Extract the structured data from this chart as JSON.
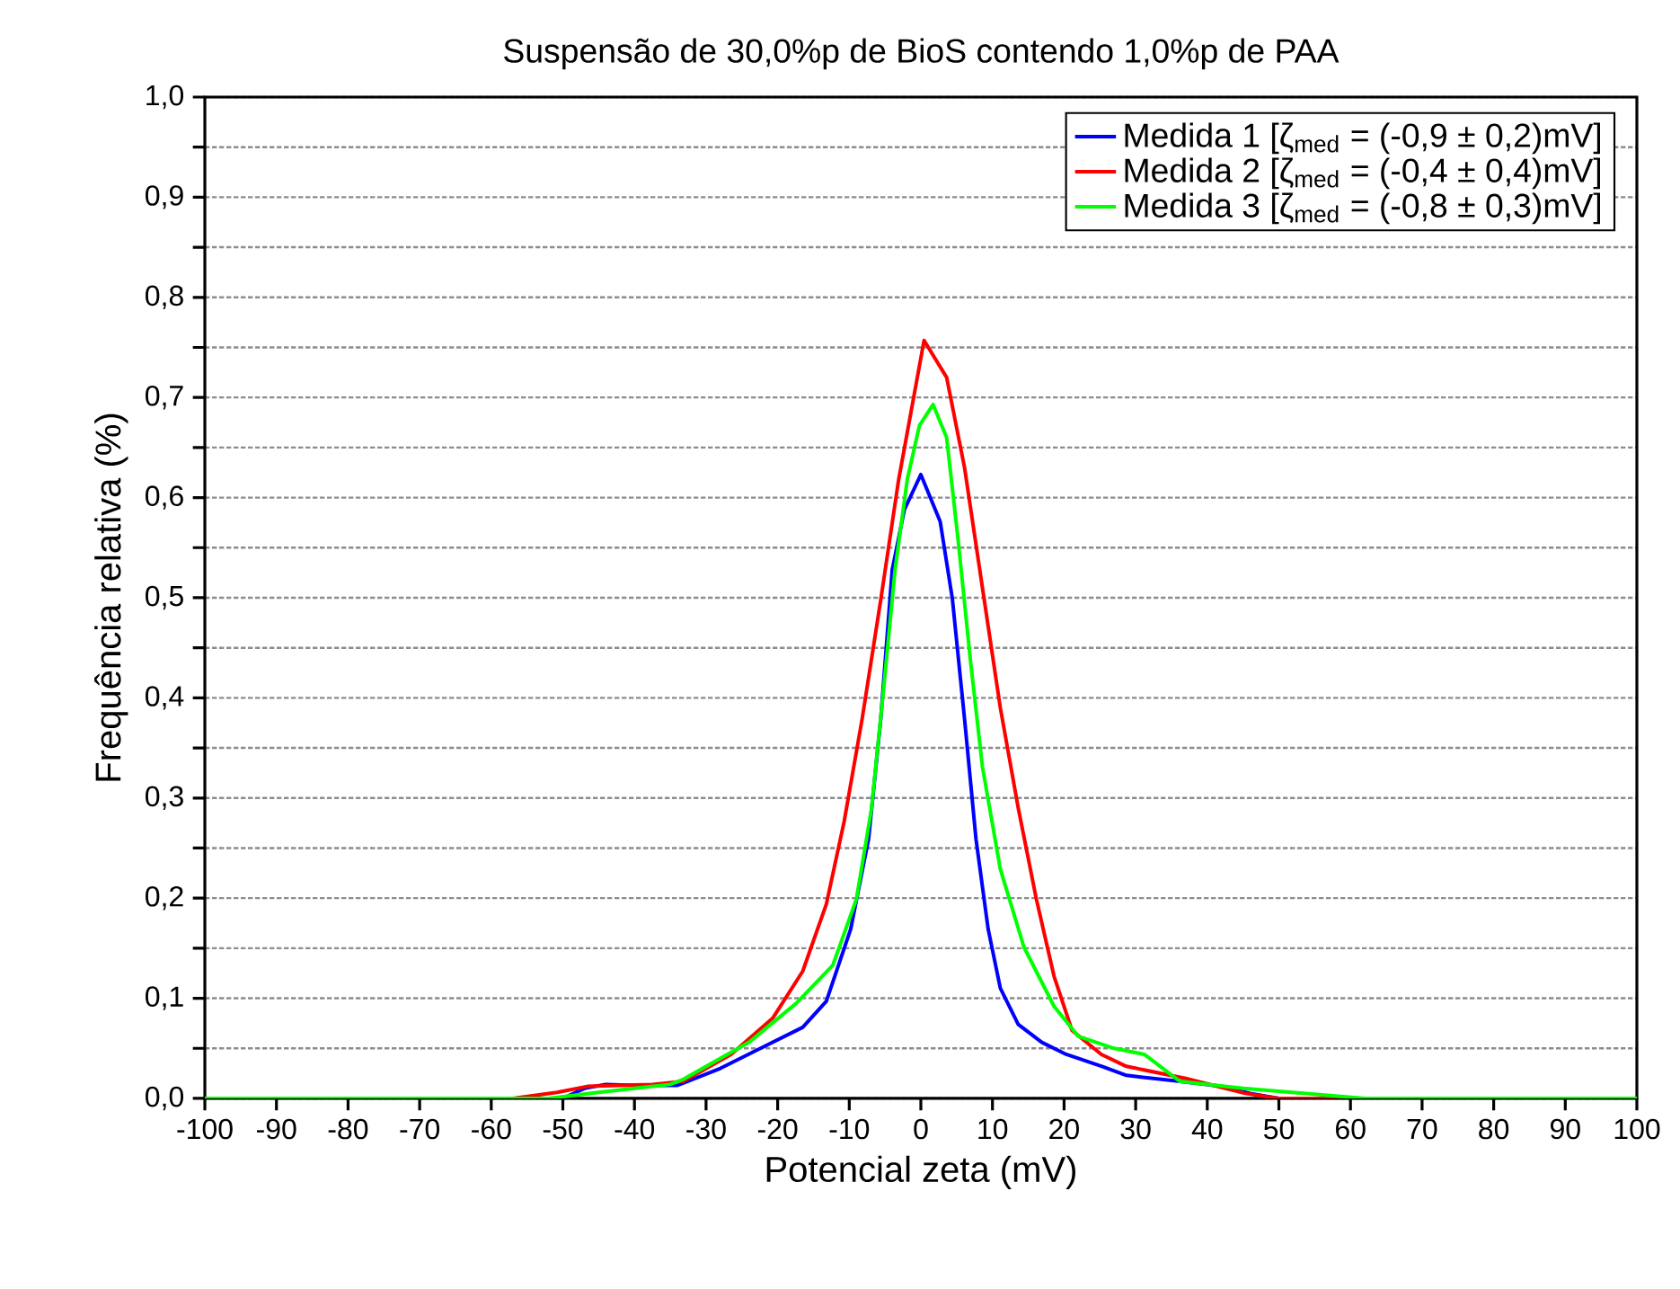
{
  "chart_data": {
    "type": "line",
    "title": "Suspensão de 30,0%p de BioS contendo 1,0%p de PAA",
    "xlabel": "Potencial zeta (mV)",
    "ylabel": "Frequência relativa (%)",
    "xlim": [
      -100,
      100
    ],
    "ylim": [
      0,
      1.0
    ],
    "xticks": [
      -100,
      -90,
      -80,
      -70,
      -60,
      -50,
      -40,
      -30,
      -20,
      -10,
      0,
      10,
      20,
      30,
      40,
      50,
      60,
      70,
      80,
      90,
      100
    ],
    "yticks": [
      {
        "value": 0,
        "label": "0,0"
      },
      {
        "value": 0.05,
        "label": null
      },
      {
        "value": 0.1,
        "label": "0,1"
      },
      {
        "value": 0.15,
        "label": null
      },
      {
        "value": 0.2,
        "label": "0,2"
      },
      {
        "value": 0.25,
        "label": null
      },
      {
        "value": 0.3,
        "label": "0,3"
      },
      {
        "value": 0.35,
        "label": null
      },
      {
        "value": 0.4,
        "label": "0,4"
      },
      {
        "value": 0.45,
        "label": null
      },
      {
        "value": 0.5,
        "label": "0,5"
      },
      {
        "value": 0.55,
        "label": null
      },
      {
        "value": 0.6,
        "label": "0,6"
      },
      {
        "value": 0.65,
        "label": null
      },
      {
        "value": 0.7,
        "label": "0,7"
      },
      {
        "value": 0.75,
        "label": null
      },
      {
        "value": 0.8,
        "label": "0,8"
      },
      {
        "value": 0.85,
        "label": null
      },
      {
        "value": 0.9,
        "label": "0,9"
      },
      {
        "value": 0.95,
        "label": null
      },
      {
        "value": 1.0,
        "label": "1,0"
      }
    ],
    "grid": "y",
    "legend": "top right",
    "series": [
      {
        "name": "Medida 1 [ζ$_{med}$ = (-0,9 ± 0,2)mV]",
        "color": "#0000ff",
        "x": [
          -50,
          -47,
          -44,
          -40,
          -34,
          -28,
          -22.4,
          -16.5,
          -13.2,
          -9.8,
          -7.3,
          -5.6,
          -4.0,
          -2.3,
          0,
          2.7,
          4.4,
          6.1,
          7.7,
          9.4,
          11.1,
          13.6,
          16.9,
          20.3,
          25.3,
          28.7,
          36.2,
          42,
          46,
          50
        ],
        "values": [
          0,
          0.01,
          0.014,
          0.013,
          0.013,
          0.03,
          0.05,
          0.071,
          0.097,
          0.169,
          0.259,
          0.379,
          0.528,
          0.588,
          0.623,
          0.576,
          0.499,
          0.379,
          0.259,
          0.169,
          0.11,
          0.074,
          0.056,
          0.044,
          0.032,
          0.023,
          0.017,
          0.012,
          0.005,
          0
        ]
      },
      {
        "name": "Medida 2 [ζ$_{med}$ = (-0,4 ± 0,4)mV]",
        "color": "#ff0000",
        "x": [
          -57,
          -50.8,
          -46.6,
          -37.5,
          -33.2,
          -26.5,
          -20.7,
          -16.5,
          -13.2,
          -10.7,
          -8.2,
          -5.6,
          -3.1,
          0.45,
          3.6,
          6.1,
          8.6,
          11.1,
          13.6,
          16.1,
          18.6,
          21.1,
          25.2,
          28.7,
          37,
          45.3,
          50,
          66.3
        ],
        "values": [
          0,
          0.006,
          0.012,
          0.014,
          0.017,
          0.044,
          0.08,
          0.127,
          0.194,
          0.277,
          0.379,
          0.498,
          0.618,
          0.757,
          0.72,
          0.63,
          0.51,
          0.39,
          0.29,
          0.2,
          0.122,
          0.068,
          0.044,
          0.032,
          0.02,
          0.005,
          0,
          0
        ]
      },
      {
        "name": "Medida 3 [ζ$_{med}$ = (-0,8 ± 0,3)mV]",
        "color": "#00ff00",
        "x": [
          -100,
          -52,
          -45,
          -40,
          -35,
          -33.2,
          -24,
          -17.4,
          -12.3,
          -9.0,
          -6.9,
          -5.2,
          -3.6,
          -1.9,
          -0.2,
          1.7,
          3.6,
          5.2,
          6.9,
          8.6,
          11.1,
          14.4,
          18.6,
          22,
          27,
          31.2,
          36.2,
          45,
          53.8,
          62,
          100
        ],
        "values": [
          0,
          0,
          0.006,
          0.01,
          0.014,
          0.019,
          0.056,
          0.095,
          0.133,
          0.199,
          0.289,
          0.409,
          0.528,
          0.618,
          0.672,
          0.693,
          0.66,
          0.558,
          0.439,
          0.331,
          0.229,
          0.151,
          0.092,
          0.062,
          0.05,
          0.044,
          0.017,
          0.01,
          0.005,
          0,
          0
        ]
      }
    ]
  }
}
